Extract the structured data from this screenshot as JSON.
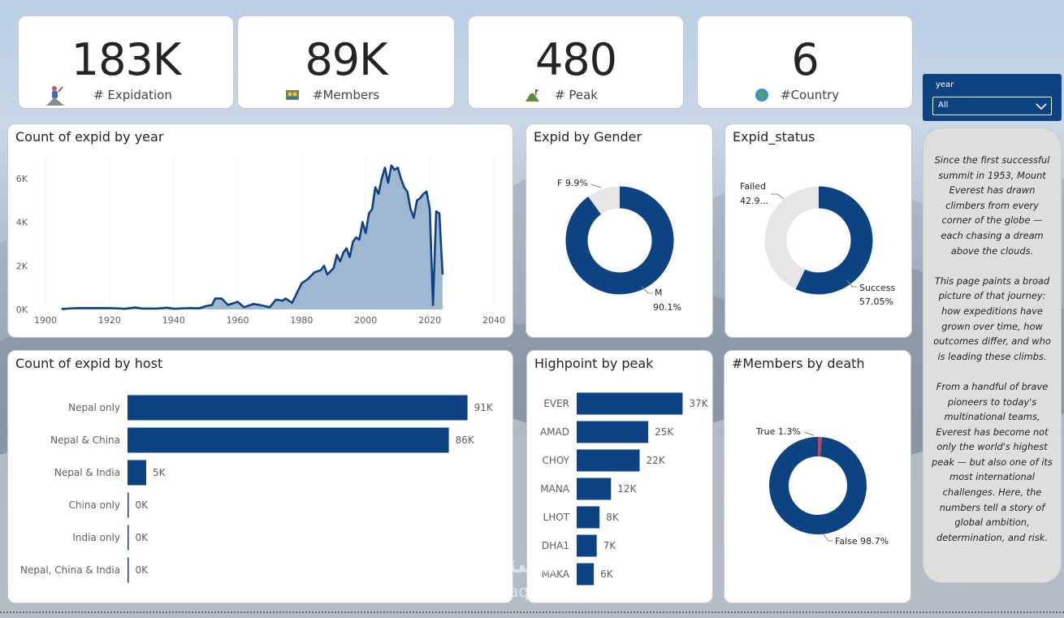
{
  "kpis": [
    {
      "value": "183K",
      "label": "# Expidation",
      "icon": "climber-icon"
    },
    {
      "value": "89K",
      "label": "#Members",
      "icon": "team-icon"
    },
    {
      "value": "480",
      "label": "# Peak",
      "icon": "mountain-icon"
    },
    {
      "value": "6",
      "label": "#Country",
      "icon": "globe-icon"
    }
  ],
  "slicer": {
    "label": "year",
    "value": "All"
  },
  "narrative": [
    "Since the first successful summit in 1953, Mount Everest has drawn climbers from every corner of the globe — each chasing a dream above the clouds.",
    "This page paints a broad picture of that journey: how expeditions have grown over time, how outcomes differ, and who is leading these climbs.",
    "From a handful of brave pioneers to today's multinational teams, Everest has become not only the world's highest peak — but also one of its most international challenges. Here, the numbers tell a story of global ambition, determination, and risk."
  ],
  "titles": {
    "year_chart": "Count of expid by year",
    "gender_chart": "Expid by Gender",
    "status_chart": "Expid_status",
    "host_chart": "Count of expid by host",
    "peak_chart": "Highpoint by peak",
    "death_chart": "#Members by death"
  },
  "watermark": {
    "brand": "مستقل",
    "site": "mostaql.com"
  },
  "colors": {
    "primary": "#0d4283",
    "area": "#9bb3d0",
    "grey": "#e6e6e6",
    "accent": "#c0455b"
  },
  "chart_data": [
    {
      "id": "year",
      "type": "area",
      "title": "Count of expid by year",
      "xlim": [
        1900,
        2040
      ],
      "xticks": [
        "1900",
        "1920",
        "1940",
        "1960",
        "1980",
        "2000",
        "2020",
        "2040"
      ],
      "yticks": [
        "0K",
        "2K",
        "4K",
        "6K"
      ],
      "ylim": [
        0,
        7000
      ],
      "x": [
        1905,
        1910,
        1920,
        1925,
        1928,
        1930,
        1935,
        1938,
        1940,
        1945,
        1948,
        1950,
        1952,
        1953,
        1955,
        1957,
        1960,
        1962,
        1965,
        1967,
        1970,
        1972,
        1974,
        1975,
        1977,
        1978,
        1980,
        1982,
        1984,
        1986,
        1987,
        1988,
        1990,
        1991,
        1992,
        1993,
        1994,
        1995,
        1996,
        1997,
        1998,
        1999,
        2000,
        2001,
        2002,
        2003,
        2004,
        2005,
        2006,
        2007,
        2008,
        2009,
        2010,
        2011,
        2012,
        2013,
        2014,
        2015,
        2016,
        2017,
        2018,
        2019,
        2020,
        2021,
        2022,
        2023,
        2024
      ],
      "y": [
        20,
        60,
        60,
        30,
        90,
        40,
        40,
        80,
        30,
        60,
        50,
        150,
        200,
        500,
        500,
        200,
        350,
        100,
        250,
        200,
        100,
        450,
        400,
        500,
        300,
        600,
        1200,
        1400,
        1700,
        1800,
        2000,
        1600,
        1900,
        2500,
        2200,
        2600,
        2800,
        2400,
        3100,
        3300,
        3200,
        4000,
        3500,
        4400,
        4600,
        5600,
        5300,
        6000,
        6500,
        5800,
        6600,
        6400,
        6500,
        6000,
        5600,
        5400,
        4600,
        4200,
        5000,
        5100,
        5300,
        5400,
        4600,
        200,
        4500,
        4400,
        1600
      ]
    },
    {
      "id": "gender",
      "type": "pie",
      "title": "Expid by Gender",
      "labels": [
        "F",
        "M"
      ],
      "values": [
        9.9,
        90.1
      ],
      "display": [
        "F 9.9%",
        "M",
        "90.1%"
      ]
    },
    {
      "id": "status",
      "type": "pie",
      "title": "Expid_status",
      "labels": [
        "Failed",
        "Success"
      ],
      "values": [
        42.95,
        57.05
      ],
      "display": [
        "Failed",
        "42.9...",
        "Success",
        "57.05%"
      ]
    },
    {
      "id": "host",
      "type": "bar",
      "title": "Count of expid by host",
      "categories": [
        "Nepal only",
        "Nepal & China",
        "Nepal & India",
        "China only",
        "India only",
        "Nepal, China & India"
      ],
      "values": [
        91,
        86,
        5,
        0,
        0,
        0
      ],
      "labels": [
        "91K",
        "86K",
        "5K",
        "0K",
        "0K",
        "0K"
      ],
      "xlim": [
        0,
        100
      ]
    },
    {
      "id": "peak",
      "type": "bar",
      "title": "Highpoint by peak",
      "categories": [
        "EVER",
        "AMAD",
        "CHOY",
        "MANA",
        "LHOT",
        "DHA1",
        "MAKA"
      ],
      "values": [
        37,
        25,
        22,
        12,
        8,
        7,
        6
      ],
      "labels": [
        "37K",
        "25K",
        "22K",
        "12K",
        "8K",
        "7K",
        "6K"
      ],
      "xlim": [
        0,
        40
      ]
    },
    {
      "id": "death",
      "type": "pie",
      "title": "#Members by death",
      "labels": [
        "True",
        "False"
      ],
      "values": [
        1.3,
        98.7
      ],
      "display": [
        "True 1.3%",
        "False 98.7%"
      ]
    }
  ]
}
